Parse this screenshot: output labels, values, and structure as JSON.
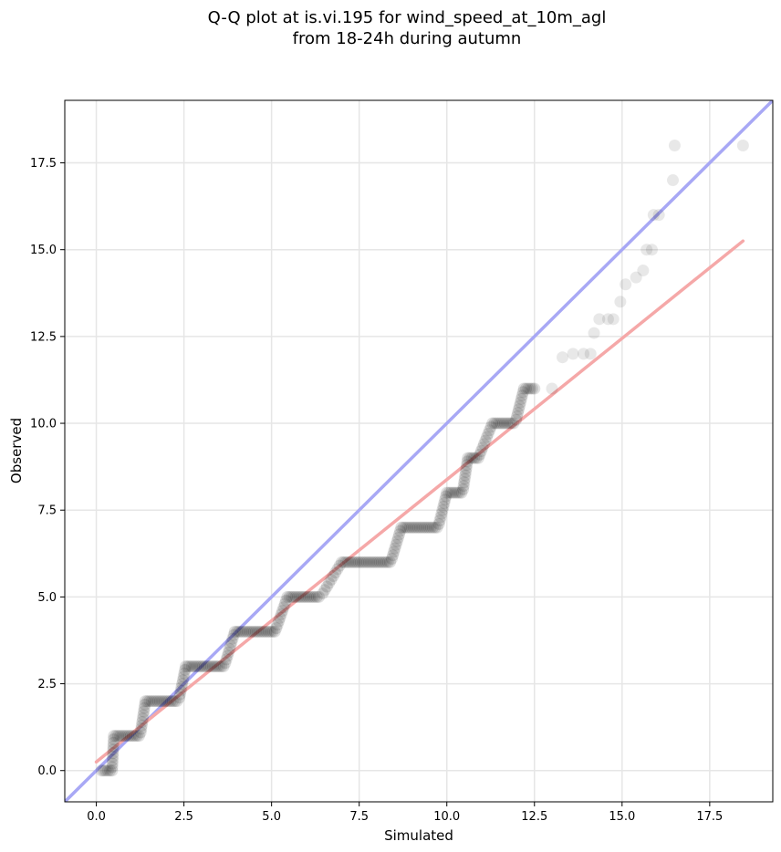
{
  "chart_data": {
    "type": "scatter",
    "title_lines": [
      "Q-Q plot at is.vi.195 for wind_speed_at_10m_agl",
      "from 18-24h during autumn"
    ],
    "xlabel": "Simulated",
    "ylabel": "Observed",
    "xlim": [
      -0.9,
      19.3
    ],
    "ylim": [
      -0.9,
      19.3
    ],
    "x_ticks": [
      0.0,
      2.5,
      5.0,
      7.5,
      10.0,
      12.5,
      15.0,
      17.5
    ],
    "x_tick_labels": [
      "0.0",
      "2.5",
      "5.0",
      "7.5",
      "10.0",
      "12.5",
      "15.0",
      "17.5"
    ],
    "y_ticks": [
      0.0,
      2.5,
      5.0,
      7.5,
      10.0,
      12.5,
      15.0,
      17.5
    ],
    "y_tick_labels": [
      "0.0",
      "2.5",
      "5.0",
      "7.5",
      "10.0",
      "12.5",
      "15.0",
      "17.5"
    ],
    "grid": true,
    "identity_line": {
      "color": "#a8a8f5"
    },
    "fit_line": {
      "color": "#f5a8a8",
      "x": [
        0.0,
        18.45
      ],
      "y": [
        0.25,
        15.25
      ]
    },
    "points": {
      "color": "#000000",
      "step_segments": [
        {
          "y": 0,
          "x_start": 0.15,
          "x_end": 0.45
        },
        {
          "y": 1,
          "x_start": 0.5,
          "x_end": 1.25
        },
        {
          "y": 2,
          "x_start": 1.4,
          "x_end": 2.35
        },
        {
          "y": 3,
          "x_start": 2.55,
          "x_end": 3.65
        },
        {
          "y": 4,
          "x_start": 3.95,
          "x_end": 5.1
        },
        {
          "y": 5,
          "x_start": 5.45,
          "x_end": 6.4
        },
        {
          "y": 6,
          "x_start": 7.0,
          "x_end": 8.4
        },
        {
          "y": 7,
          "x_start": 8.7,
          "x_end": 9.75
        },
        {
          "y": 8,
          "x_start": 10.0,
          "x_end": 10.45
        },
        {
          "y": 9,
          "x_start": 10.6,
          "x_end": 10.9
        },
        {
          "y": 10,
          "x_start": 11.3,
          "x_end": 11.95
        },
        {
          "y": 11,
          "x_start": 12.2,
          "x_end": 12.55
        }
      ],
      "tail_points": [
        [
          13.0,
          11.0
        ],
        [
          13.3,
          11.9
        ],
        [
          13.6,
          12.0
        ],
        [
          13.9,
          12.0
        ],
        [
          14.1,
          12.0
        ],
        [
          14.2,
          12.6
        ],
        [
          14.35,
          13.0
        ],
        [
          14.6,
          13.0
        ],
        [
          14.75,
          13.0
        ],
        [
          14.95,
          13.5
        ],
        [
          15.1,
          14.0
        ],
        [
          15.4,
          14.2
        ],
        [
          15.6,
          14.4
        ],
        [
          15.7,
          15.0
        ],
        [
          15.85,
          15.0
        ],
        [
          15.9,
          16.0
        ],
        [
          16.05,
          16.0
        ],
        [
          16.45,
          17.0
        ],
        [
          16.5,
          18.0
        ],
        [
          18.45,
          18.0
        ]
      ]
    }
  }
}
